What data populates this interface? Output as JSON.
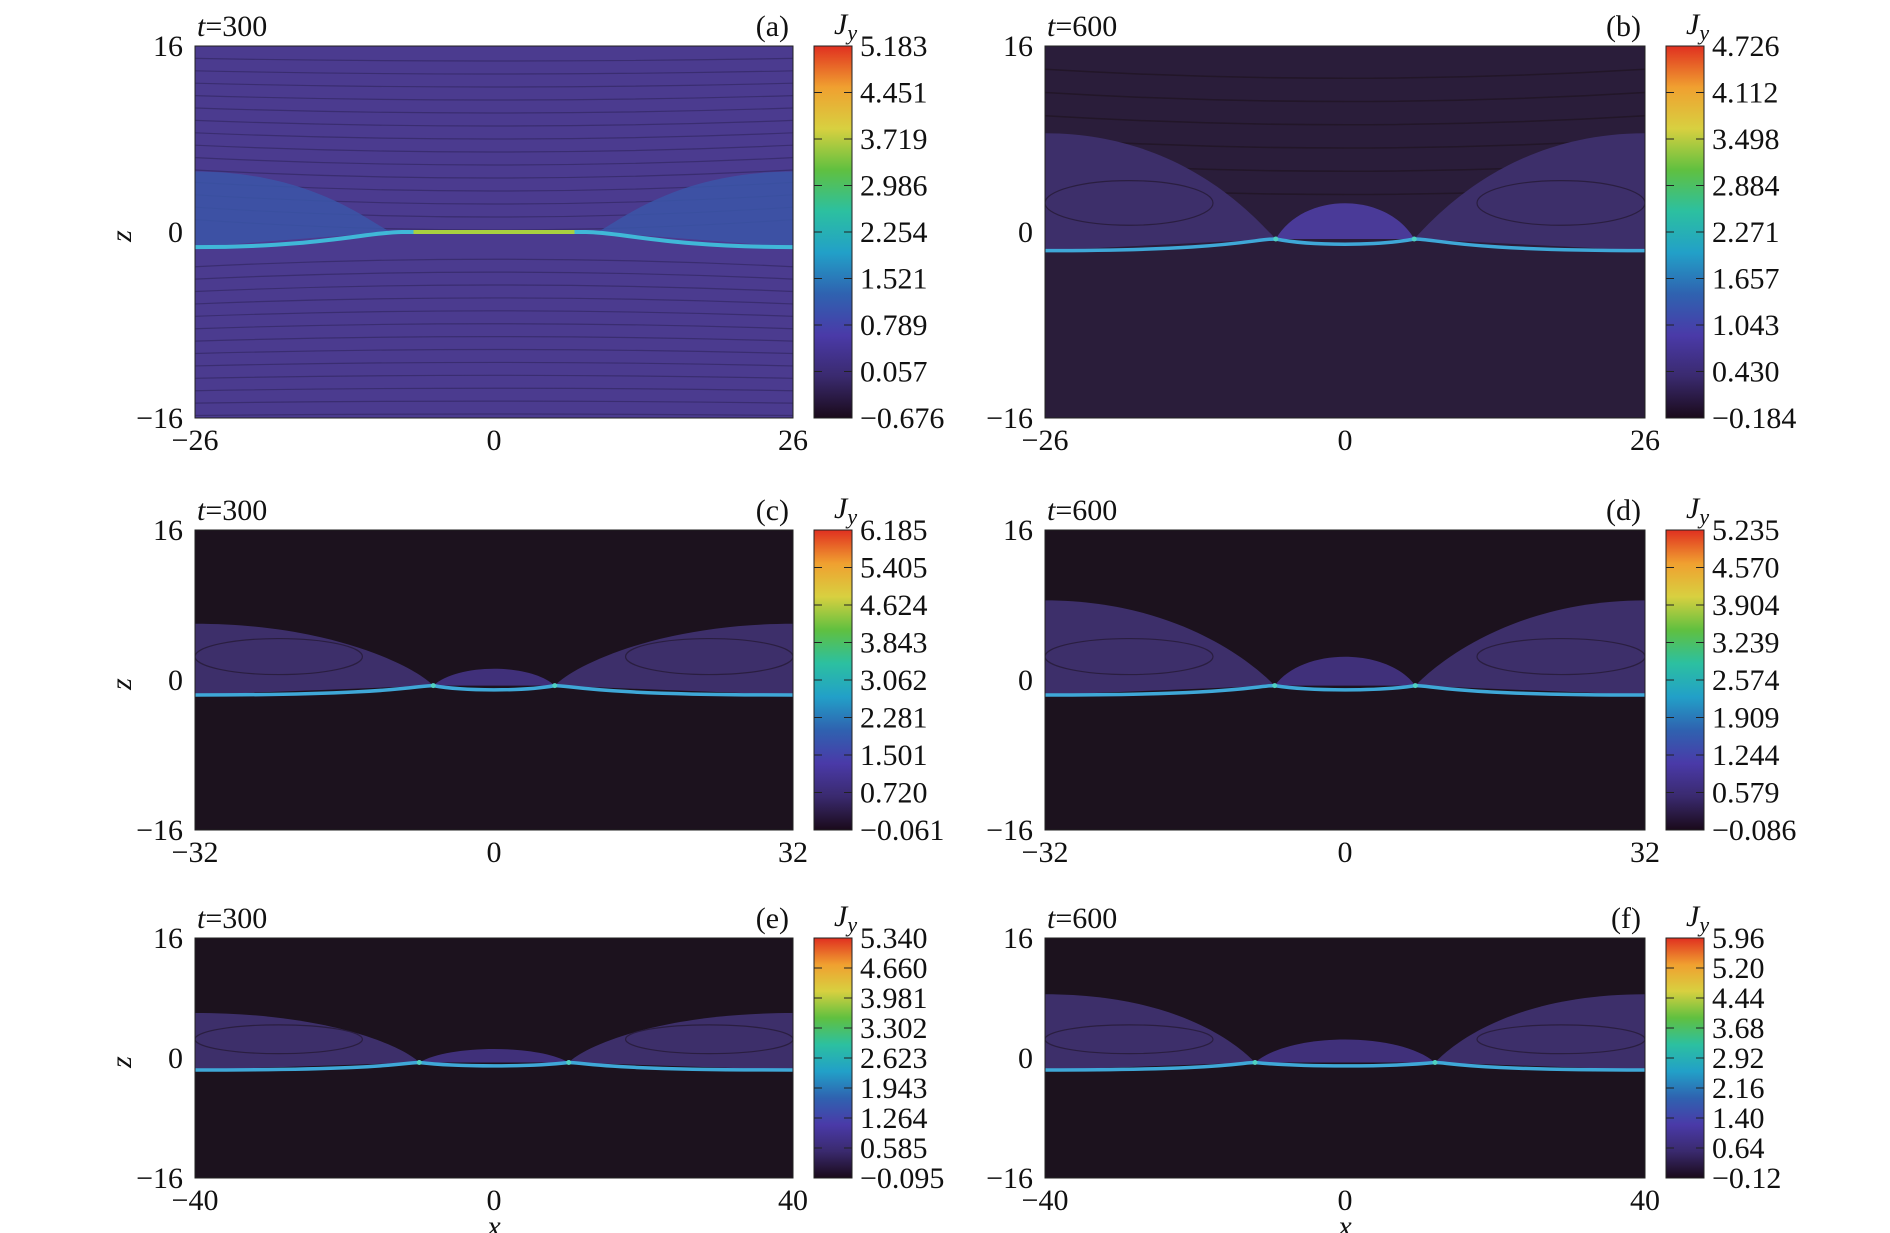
{
  "chart_data": [
    {
      "type": "heatmap",
      "label": "(a)",
      "time_label": "t=300",
      "xlim": [
        -26,
        26
      ],
      "ylim": [
        -16,
        16
      ],
      "xticks": [
        "−26",
        "0",
        "26"
      ],
      "yticks": [
        "16",
        "0",
        "−16"
      ],
      "ylabel": "z",
      "xlabel": "",
      "colorbar": {
        "title": "Jy",
        "ticks": [
          "5.183",
          "4.451",
          "3.719",
          "2.986",
          "2.254",
          "1.521",
          "0.789",
          "0.057",
          "−0.676"
        ]
      }
    },
    {
      "type": "heatmap",
      "label": "(b)",
      "time_label": "t=600",
      "xlim": [
        -26,
        26
      ],
      "ylim": [
        -16,
        16
      ],
      "xticks": [
        "−26",
        "0",
        "26"
      ],
      "yticks": [
        "16",
        "0",
        "−16"
      ],
      "ylabel": "",
      "xlabel": "",
      "colorbar": {
        "title": "Jy",
        "ticks": [
          "4.726",
          "4.112",
          "3.498",
          "2.884",
          "2.271",
          "1.657",
          "1.043",
          "0.430",
          "−0.184"
        ]
      }
    },
    {
      "type": "heatmap",
      "label": "(c)",
      "time_label": "t=300",
      "xlim": [
        -32,
        32
      ],
      "ylim": [
        -16,
        16
      ],
      "xticks": [
        "−32",
        "0",
        "32"
      ],
      "yticks": [
        "16",
        "0",
        "−16"
      ],
      "ylabel": "z",
      "xlabel": "",
      "colorbar": {
        "title": "Jy",
        "ticks": [
          "6.185",
          "5.405",
          "4.624",
          "3.843",
          "3.062",
          "2.281",
          "1.501",
          "0.720",
          "−0.061"
        ]
      }
    },
    {
      "type": "heatmap",
      "label": "(d)",
      "time_label": "t=600",
      "xlim": [
        -32,
        32
      ],
      "ylim": [
        -16,
        16
      ],
      "xticks": [
        "−32",
        "0",
        "32"
      ],
      "yticks": [
        "16",
        "0",
        "−16"
      ],
      "ylabel": "",
      "xlabel": "",
      "colorbar": {
        "title": "Jy",
        "ticks": [
          "5.235",
          "4.570",
          "3.904",
          "3.239",
          "2.574",
          "1.909",
          "1.244",
          "0.579",
          "−0.086"
        ]
      }
    },
    {
      "type": "heatmap",
      "label": "(e)",
      "time_label": "t=300",
      "xlim": [
        -40,
        40
      ],
      "ylim": [
        -16,
        16
      ],
      "xticks": [
        "−40",
        "0",
        "40"
      ],
      "yticks": [
        "16",
        "0",
        "−16"
      ],
      "ylabel": "z",
      "xlabel": "x",
      "colorbar": {
        "title": "Jy",
        "ticks": [
          "5.340",
          "4.660",
          "3.981",
          "3.302",
          "2.623",
          "1.943",
          "1.264",
          "0.585",
          "−0.095"
        ]
      }
    },
    {
      "type": "heatmap",
      "label": "(f)",
      "time_label": "t=600",
      "xlim": [
        -40,
        40
      ],
      "ylim": [
        -16,
        16
      ],
      "xticks": [
        "−40",
        "0",
        "40"
      ],
      "yticks": [
        "16",
        "0",
        "−16"
      ],
      "ylabel": "",
      "xlabel": "x",
      "colorbar": {
        "title": "Jy",
        "ticks": [
          "5.96",
          "5.20",
          "4.44",
          "3.68",
          "2.92",
          "2.16",
          "1.40",
          "0.64",
          "−0.12"
        ]
      }
    }
  ],
  "colors": {
    "colormap": [
      "#1a0a1a",
      "#3a2a6e",
      "#4a3aa8",
      "#2f62b0",
      "#22a0c8",
      "#2cc0a0",
      "#60c040",
      "#d8d040",
      "#f0a030",
      "#e03020"
    ],
    "bg_dark": "#1a111c",
    "bg_purple": "#4b3b8f",
    "region_purple": "#3d2f6a",
    "sheet": "#3fa8d8"
  }
}
